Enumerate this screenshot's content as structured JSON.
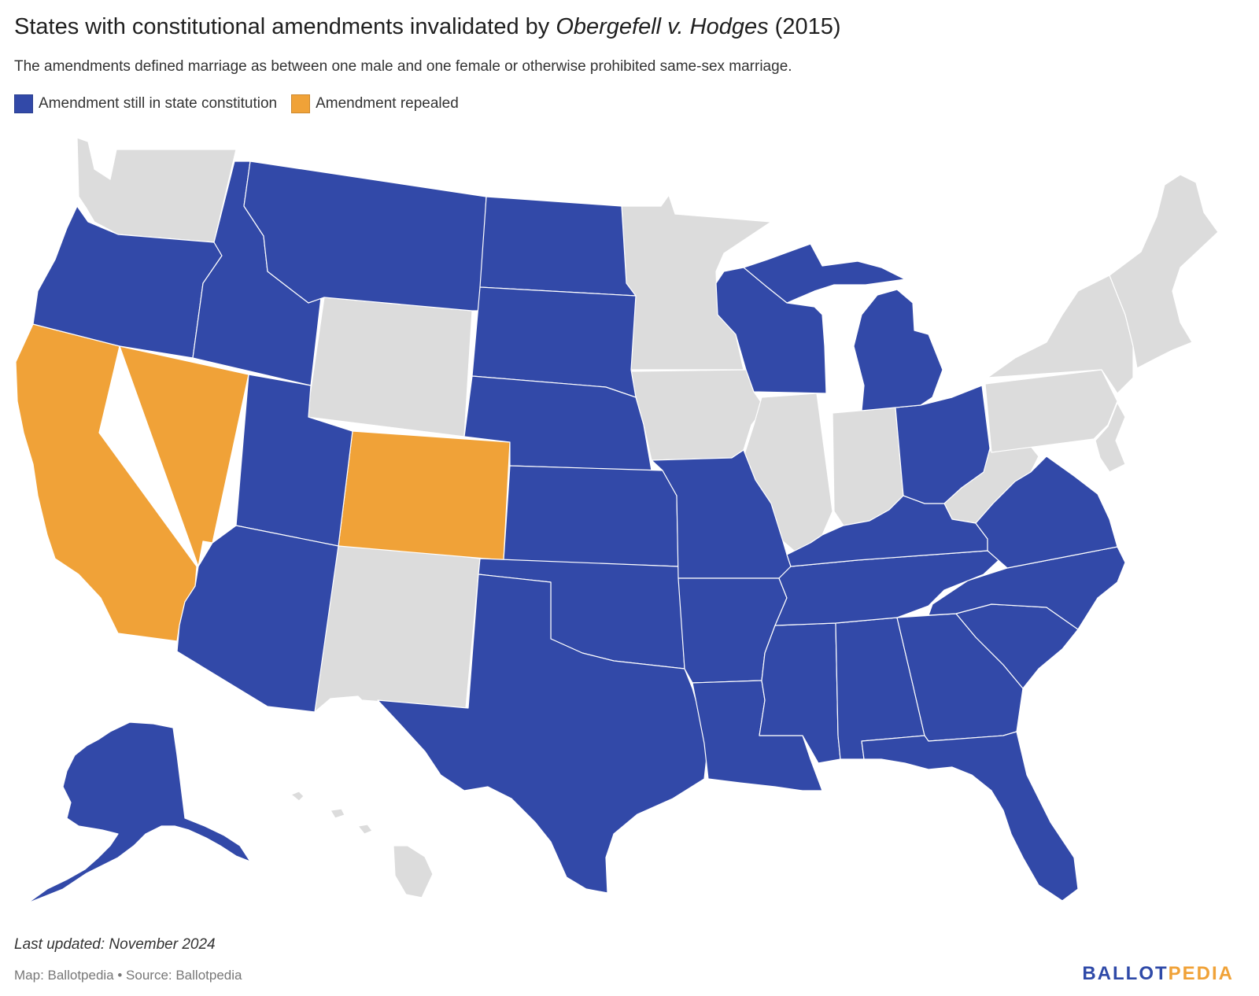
{
  "title": {
    "prefix": "States with constitutional amendments invalidated by ",
    "case_name": "Obergefell v. Hodges",
    "suffix": " (2015)"
  },
  "subtitle": "The amendments defined marriage as between one male and one female or otherwise prohibited same-sex marriage.",
  "legend": [
    {
      "label": "Amendment still in state constitution",
      "color": "#3249a8"
    },
    {
      "label": "Amendment repealed",
      "color": "#f0a238"
    }
  ],
  "colors": {
    "still_in_constitution": "#3249a8",
    "repealed": "#f0a238",
    "none": "#dcdcdc",
    "border": "#ffffff"
  },
  "states_still_in_constitution": [
    "Oregon",
    "Idaho",
    "Montana",
    "North Dakota",
    "South Dakota",
    "Nebraska",
    "Kansas",
    "Utah",
    "Arizona",
    "Texas",
    "Oklahoma",
    "Missouri",
    "Arkansas",
    "Louisiana",
    "Mississippi",
    "Alabama",
    "Georgia",
    "Florida",
    "South Carolina",
    "North Carolina",
    "Virginia",
    "Tennessee",
    "Kentucky",
    "Ohio",
    "Michigan",
    "Wisconsin",
    "Alaska"
  ],
  "states_repealed": [
    "California",
    "Nevada",
    "Colorado"
  ],
  "footer": {
    "updated": "Last updated: November 2024",
    "source": "Map: Ballotpedia • Source: Ballotpedia"
  },
  "brand": {
    "part1": "BALLOT",
    "part2": "PEDIA"
  }
}
